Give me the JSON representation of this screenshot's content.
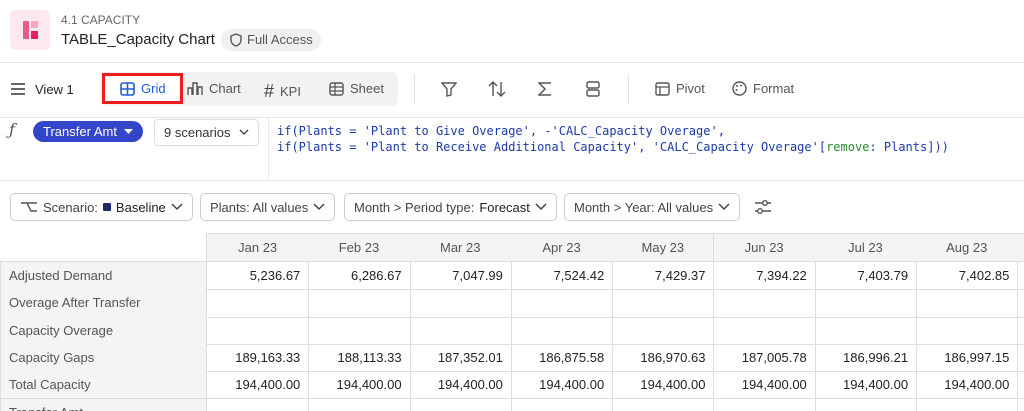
{
  "header": {
    "section": "4.1 CAPACITY",
    "title": "TABLE_Capacity Chart",
    "access": "Full Access"
  },
  "toolbar": {
    "view": "View 1",
    "tabs": [
      "Grid",
      "Chart",
      "KPI",
      "Sheet"
    ],
    "tools": [
      "Pivot",
      "Format"
    ]
  },
  "formula": {
    "variable": "Transfer Amt",
    "scenarios": "9 scenarios",
    "line1": "if(Plants = 'Plant to Give Overage', -'CALC_Capacity Overage',",
    "line2": [
      "if(Plants = 'Plant to Receive Additional Capacity', 'CALC_Capacity Overage'[",
      "remove",
      ": Plants]))"
    ]
  },
  "filters": {
    "scenario_label": "Scenario:",
    "scenario_value": "Baseline",
    "plants": "Plants: All values",
    "period_label": "Month > Period type:",
    "period_value": "Forecast",
    "year": "Month > Year: All values"
  },
  "table": {
    "columns": [
      "Jan 23",
      "Feb 23",
      "Mar 23",
      "Apr 23",
      "May 23",
      "Jun 23",
      "Jul 23",
      "Aug 23"
    ],
    "rows": [
      {
        "label": "Adjusted Demand",
        "cells": [
          "5,236.67",
          "6,286.67",
          "7,047.99",
          "7,524.42",
          "7,429.37",
          "7,394.22",
          "7,403.79",
          "7,402.85"
        ]
      },
      {
        "label": "Overage After Transfer",
        "cells": [
          null,
          null,
          null,
          null,
          null,
          null,
          null,
          null
        ]
      },
      {
        "label": "Capacity Overage",
        "cells": [
          null,
          null,
          null,
          null,
          null,
          null,
          null,
          null
        ]
      },
      {
        "label": "Capacity Gaps",
        "cells": [
          "189,163.33",
          "188,113.33",
          "187,352.01",
          "186,875.58",
          "186,970.63",
          "187,005.78",
          "186,996.21",
          "186,997.15"
        ]
      },
      {
        "label": "Total Capacity",
        "cells": [
          "194,400.00",
          "194,400.00",
          "194,400.00",
          "194,400.00",
          "194,400.00",
          "194,400.00",
          "194,400.00",
          "194,400.00"
        ]
      },
      {
        "label": "Transfer Amt",
        "cells": [
          null,
          null,
          null,
          null,
          null,
          null,
          null,
          null
        ]
      }
    ]
  }
}
